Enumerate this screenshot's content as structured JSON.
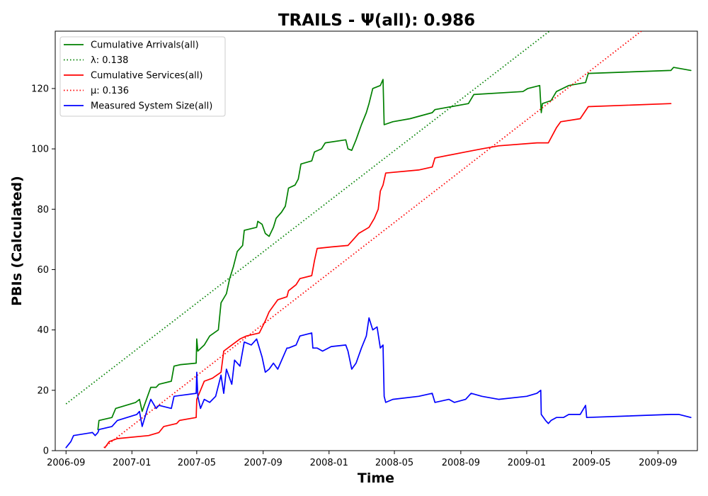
{
  "chart_data": {
    "type": "line",
    "title": "TRAILS -  Ψ(all): 0.986",
    "xlabel": "Time",
    "ylabel": "PBIs (Calculated)",
    "x_ticks": [
      "2006-09",
      "2007-01",
      "2007-05",
      "2007-09",
      "2008-01",
      "2008-05",
      "2008-09",
      "2009-01",
      "2009-05",
      "2009-09"
    ],
    "x_range": [
      "2006-08-12",
      "2009-11-13"
    ],
    "y_ticks": [
      0,
      20,
      40,
      60,
      80,
      100,
      120
    ],
    "ylim": [
      0,
      139
    ],
    "grid": false,
    "legend_position": "top-left",
    "series": [
      {
        "name": "Cumulative Arrivals(all)",
        "color": "#008000",
        "style": "solid",
        "points": [
          [
            "2006-10-30",
            7
          ],
          [
            "2006-11-01",
            10
          ],
          [
            "2006-11-25",
            11
          ],
          [
            "2006-12-02",
            14
          ],
          [
            "2007-01-08",
            16
          ],
          [
            "2007-01-15",
            17
          ],
          [
            "2007-01-20",
            13
          ],
          [
            "2007-01-30",
            18
          ],
          [
            "2007-02-05",
            21
          ],
          [
            "2007-02-15",
            21
          ],
          [
            "2007-02-20",
            22
          ],
          [
            "2007-03-15",
            23
          ],
          [
            "2007-03-20",
            28
          ],
          [
            "2007-04-01",
            28.5
          ],
          [
            "2007-04-30",
            29
          ],
          [
            "2007-05-01",
            37
          ],
          [
            "2007-05-03",
            33
          ],
          [
            "2007-05-15",
            35
          ],
          [
            "2007-05-25",
            38
          ],
          [
            "2007-06-10",
            40
          ],
          [
            "2007-06-15",
            49
          ],
          [
            "2007-06-25",
            52
          ],
          [
            "2007-07-01",
            57
          ],
          [
            "2007-07-08",
            61
          ],
          [
            "2007-07-15",
            66
          ],
          [
            "2007-07-25",
            68
          ],
          [
            "2007-07-28",
            73
          ],
          [
            "2007-08-20",
            74
          ],
          [
            "2007-08-22",
            76
          ],
          [
            "2007-08-30",
            75
          ],
          [
            "2007-09-05",
            72
          ],
          [
            "2007-09-12",
            71
          ],
          [
            "2007-09-20",
            74
          ],
          [
            "2007-09-25",
            77
          ],
          [
            "2007-10-05",
            79
          ],
          [
            "2007-10-12",
            81
          ],
          [
            "2007-10-18",
            87
          ],
          [
            "2007-10-30",
            88
          ],
          [
            "2007-11-05",
            90
          ],
          [
            "2007-11-10",
            95
          ],
          [
            "2007-11-30",
            96
          ],
          [
            "2007-12-05",
            99
          ],
          [
            "2007-12-18",
            100
          ],
          [
            "2007-12-25",
            102
          ],
          [
            "2008-02-01",
            103
          ],
          [
            "2008-02-05",
            100
          ],
          [
            "2008-02-12",
            99.5
          ],
          [
            "2008-02-20",
            103
          ],
          [
            "2008-03-01",
            108
          ],
          [
            "2008-03-10",
            112
          ],
          [
            "2008-03-15",
            115
          ],
          [
            "2008-03-22",
            120
          ],
          [
            "2008-04-05",
            121
          ],
          [
            "2008-04-10",
            123
          ],
          [
            "2008-04-12",
            108
          ],
          [
            "2008-04-28",
            109
          ],
          [
            "2008-05-30",
            110
          ],
          [
            "2008-07-10",
            112
          ],
          [
            "2008-07-15",
            113
          ],
          [
            "2008-09-15",
            115
          ],
          [
            "2008-09-25",
            118
          ],
          [
            "2008-12-25",
            119
          ],
          [
            "2009-01-03",
            120
          ],
          [
            "2009-01-25",
            121
          ],
          [
            "2009-01-28",
            112
          ],
          [
            "2009-01-30",
            115
          ],
          [
            "2009-02-15",
            116
          ],
          [
            "2009-02-25",
            119
          ],
          [
            "2009-03-20",
            121
          ],
          [
            "2009-04-20",
            122
          ],
          [
            "2009-04-25",
            125
          ],
          [
            "2009-09-25",
            126
          ],
          [
            "2009-09-30",
            127
          ],
          [
            "2009-11-01",
            126
          ]
        ]
      },
      {
        "name": "λ: 0.138",
        "color": "#008000",
        "style": "dotted",
        "points": [
          [
            "2006-09-01",
            15.5
          ],
          [
            "2009-02-12",
            139
          ]
        ]
      },
      {
        "name": "Cumulative Services(all)",
        "color": "#ff0000",
        "style": "solid",
        "points": [
          [
            "2006-11-12",
            1
          ],
          [
            "2006-11-20",
            3
          ],
          [
            "2006-12-05",
            4
          ],
          [
            "2007-02-01",
            5
          ],
          [
            "2007-02-20",
            6
          ],
          [
            "2007-03-01",
            8
          ],
          [
            "2007-03-25",
            9
          ],
          [
            "2007-03-30",
            10
          ],
          [
            "2007-04-30",
            11
          ],
          [
            "2007-05-01",
            17
          ],
          [
            "2007-05-08",
            20
          ],
          [
            "2007-05-15",
            23
          ],
          [
            "2007-05-30",
            24
          ],
          [
            "2007-06-15",
            26
          ],
          [
            "2007-06-20",
            33
          ],
          [
            "2007-07-05",
            35
          ],
          [
            "2007-07-20",
            37
          ],
          [
            "2007-08-01",
            38
          ],
          [
            "2007-08-25",
            39
          ],
          [
            "2007-09-05",
            43
          ],
          [
            "2007-09-12",
            46
          ],
          [
            "2007-09-28",
            50
          ],
          [
            "2007-10-15",
            51
          ],
          [
            "2007-10-18",
            53
          ],
          [
            "2007-11-01",
            55
          ],
          [
            "2007-11-08",
            57
          ],
          [
            "2007-11-30",
            58
          ],
          [
            "2007-12-05",
            63
          ],
          [
            "2007-12-10",
            67
          ],
          [
            "2008-01-05",
            67.5
          ],
          [
            "2008-02-05",
            68
          ],
          [
            "2008-02-25",
            72
          ],
          [
            "2008-03-15",
            74
          ],
          [
            "2008-03-25",
            77
          ],
          [
            "2008-04-01",
            80
          ],
          [
            "2008-04-05",
            86
          ],
          [
            "2008-04-10",
            88
          ],
          [
            "2008-04-15",
            92
          ],
          [
            "2008-06-15",
            93
          ],
          [
            "2008-07-10",
            94
          ],
          [
            "2008-07-15",
            97
          ],
          [
            "2008-09-10",
            99
          ],
          [
            "2008-10-10",
            100
          ],
          [
            "2008-11-10",
            101
          ],
          [
            "2009-01-20",
            102
          ],
          [
            "2009-02-10",
            102
          ],
          [
            "2009-02-25",
            107
          ],
          [
            "2009-03-05",
            109
          ],
          [
            "2009-04-10",
            110
          ],
          [
            "2009-04-25",
            114
          ],
          [
            "2009-09-25",
            115
          ]
        ]
      },
      {
        "name": "μ: 0.136",
        "color": "#ff0000",
        "style": "dotted",
        "points": [
          [
            "2006-11-10",
            1
          ],
          [
            "2009-08-01",
            139
          ]
        ]
      },
      {
        "name": "Measured System Size(all)",
        "color": "#0000ff",
        "style": "solid",
        "points": [
          [
            "2006-09-01",
            1
          ],
          [
            "2006-09-10",
            3
          ],
          [
            "2006-09-15",
            5
          ],
          [
            "2006-10-20",
            6
          ],
          [
            "2006-10-25",
            5
          ],
          [
            "2006-10-30",
            6
          ],
          [
            "2006-11-01",
            7
          ],
          [
            "2006-11-25",
            8
          ],
          [
            "2006-11-30",
            9
          ],
          [
            "2006-12-05",
            10
          ],
          [
            "2007-01-10",
            12
          ],
          [
            "2007-01-15",
            13
          ],
          [
            "2007-01-20",
            8
          ],
          [
            "2007-01-30",
            14
          ],
          [
            "2007-02-05",
            17
          ],
          [
            "2007-02-15",
            14
          ],
          [
            "2007-02-20",
            15
          ],
          [
            "2007-03-15",
            14
          ],
          [
            "2007-03-20",
            18
          ],
          [
            "2007-04-30",
            19
          ],
          [
            "2007-05-01",
            26
          ],
          [
            "2007-05-03",
            18
          ],
          [
            "2007-05-08",
            14
          ],
          [
            "2007-05-15",
            17
          ],
          [
            "2007-05-25",
            16
          ],
          [
            "2007-06-05",
            18
          ],
          [
            "2007-06-15",
            25
          ],
          [
            "2007-06-20",
            19
          ],
          [
            "2007-06-25",
            27
          ],
          [
            "2007-07-05",
            22
          ],
          [
            "2007-07-10",
            30
          ],
          [
            "2007-07-20",
            28
          ],
          [
            "2007-07-28",
            36
          ],
          [
            "2007-08-10",
            35
          ],
          [
            "2007-08-20",
            37
          ],
          [
            "2007-08-30",
            31
          ],
          [
            "2007-09-05",
            26
          ],
          [
            "2007-09-12",
            27
          ],
          [
            "2007-09-20",
            29
          ],
          [
            "2007-09-28",
            27
          ],
          [
            "2007-10-15",
            34
          ],
          [
            "2007-10-18",
            34
          ],
          [
            "2007-11-01",
            35
          ],
          [
            "2007-11-08",
            38
          ],
          [
            "2007-11-30",
            39
          ],
          [
            "2007-12-02",
            34
          ],
          [
            "2007-12-10",
            34
          ],
          [
            "2007-12-20",
            33
          ],
          [
            "2008-01-05",
            34.5
          ],
          [
            "2008-02-01",
            35
          ],
          [
            "2008-02-05",
            33
          ],
          [
            "2008-02-12",
            27
          ],
          [
            "2008-02-20",
            29
          ],
          [
            "2008-03-01",
            34
          ],
          [
            "2008-03-10",
            38
          ],
          [
            "2008-03-15",
            44
          ],
          [
            "2008-03-22",
            40
          ],
          [
            "2008-03-30",
            41
          ],
          [
            "2008-04-05",
            34
          ],
          [
            "2008-04-10",
            35
          ],
          [
            "2008-04-12",
            18
          ],
          [
            "2008-04-15",
            16
          ],
          [
            "2008-04-28",
            17
          ],
          [
            "2008-06-15",
            18
          ],
          [
            "2008-07-10",
            19
          ],
          [
            "2008-07-15",
            16
          ],
          [
            "2008-08-10",
            17
          ],
          [
            "2008-08-20",
            16
          ],
          [
            "2008-09-10",
            17
          ],
          [
            "2008-09-20",
            19
          ],
          [
            "2008-10-10",
            18
          ],
          [
            "2008-11-10",
            17
          ],
          [
            "2009-01-01",
            18
          ],
          [
            "2009-01-20",
            19
          ],
          [
            "2009-01-27",
            20
          ],
          [
            "2009-01-28",
            12
          ],
          [
            "2009-02-05",
            10
          ],
          [
            "2009-02-10",
            9
          ],
          [
            "2009-02-15",
            10
          ],
          [
            "2009-02-25",
            11
          ],
          [
            "2009-03-10",
            11
          ],
          [
            "2009-03-20",
            12
          ],
          [
            "2009-04-10",
            12
          ],
          [
            "2009-04-20",
            15
          ],
          [
            "2009-04-22",
            11
          ],
          [
            "2009-09-25",
            12
          ],
          [
            "2009-10-10",
            12
          ],
          [
            "2009-11-01",
            11
          ]
        ]
      }
    ]
  }
}
